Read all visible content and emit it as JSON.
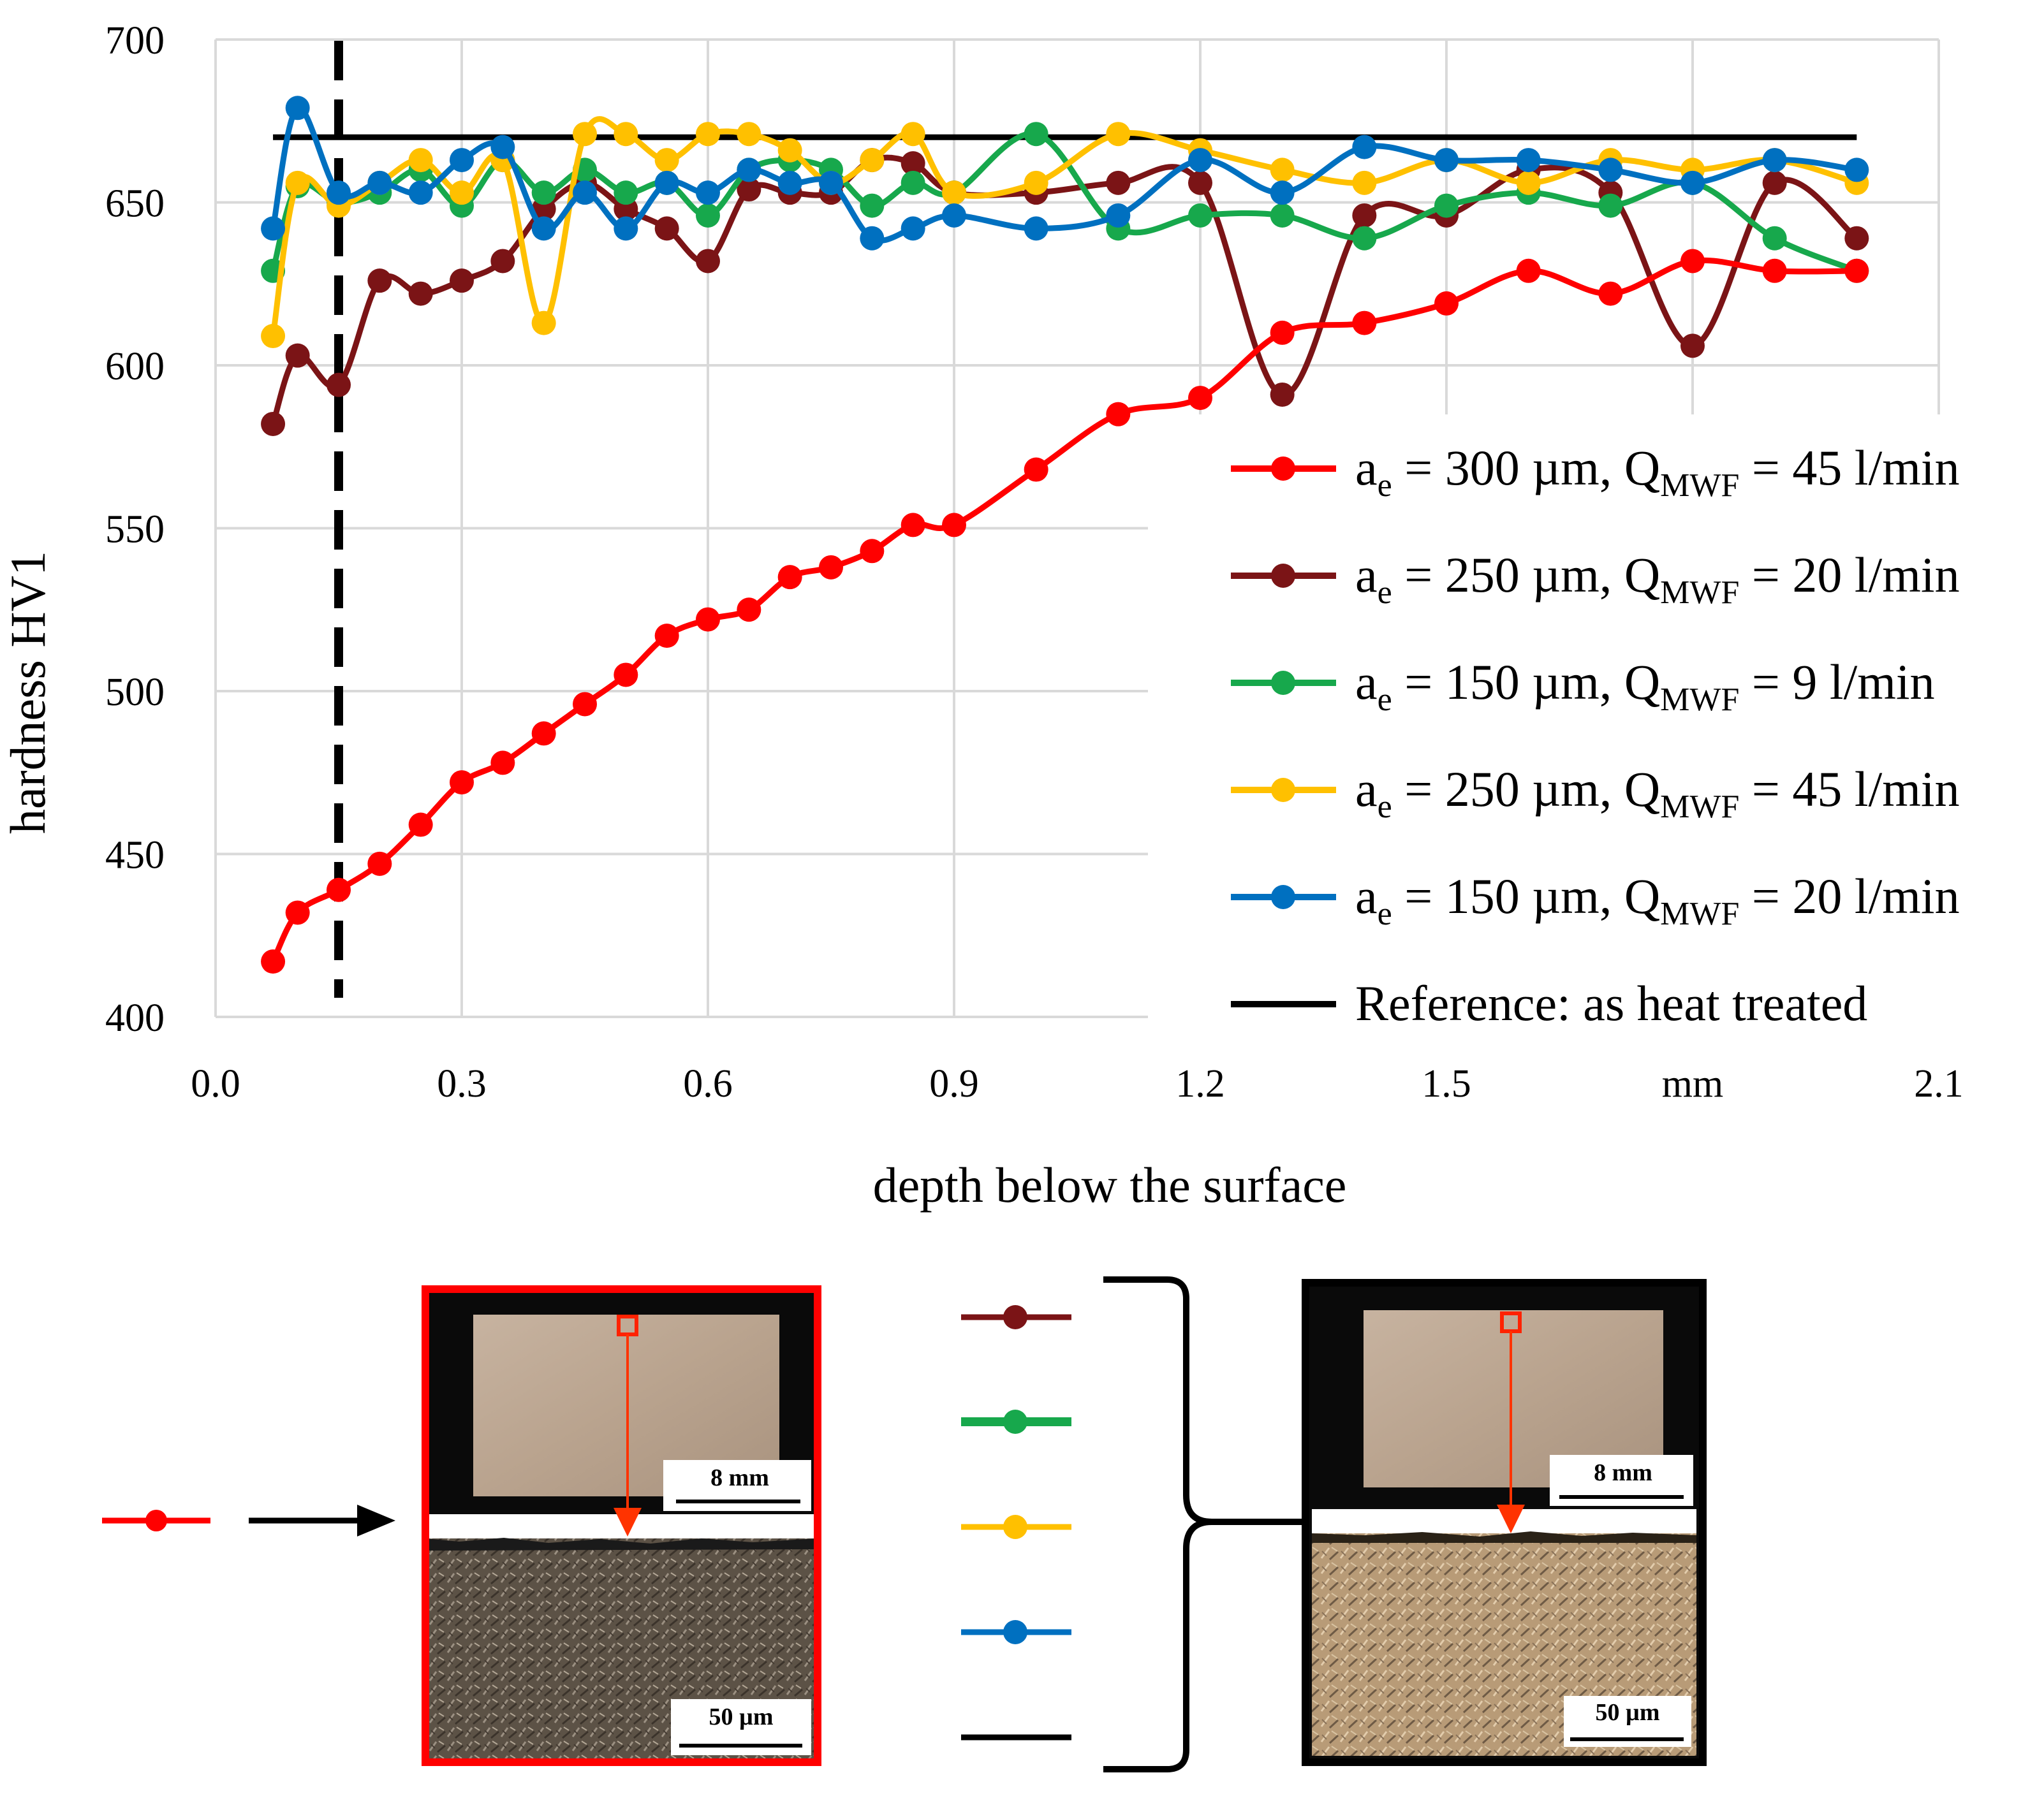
{
  "chart_data": {
    "type": "line",
    "xlabel": "depth below the surface",
    "ylabel": "hardness HV1",
    "xlim": [
      0.0,
      2.1
    ],
    "ylim": [
      400,
      700
    ],
    "x_ticks": [
      0.0,
      0.3,
      0.6,
      0.9,
      1.2,
      1.5,
      1.8,
      2.1
    ],
    "x_tick_labels": [
      "0.0",
      "0.3",
      "0.6",
      "0.9",
      "1.2",
      "1.5",
      "mm",
      "2.1"
    ],
    "y_ticks": [
      400,
      450,
      500,
      550,
      600,
      650,
      700
    ],
    "y_tick_labels": [
      "400",
      "450",
      "500",
      "550",
      "600",
      "650",
      "700"
    ],
    "grid": true,
    "legend_position": "right",
    "marker_line_x": 0.15,
    "series": [
      {
        "name": "ae = 300 µm, QMWF = 45 l/min",
        "label_parts": [
          "a",
          "e",
          " = 300 µm, Q",
          "MWF",
          " = 45 l/min"
        ],
        "color": "#ff0000",
        "x": [
          0.07,
          0.1,
          0.15,
          0.2,
          0.25,
          0.3,
          0.35,
          0.4,
          0.45,
          0.5,
          0.55,
          0.6,
          0.65,
          0.7,
          0.75,
          0.8,
          0.85,
          0.9,
          1.0,
          1.1,
          1.2,
          1.3,
          1.4,
          1.5,
          1.6,
          1.7,
          1.8,
          1.9,
          2.0
        ],
        "y": [
          417,
          432,
          439,
          447,
          459,
          472,
          478,
          487,
          496,
          505,
          517,
          522,
          525,
          535,
          538,
          543,
          551,
          551,
          568,
          585,
          590,
          610,
          613,
          619,
          629,
          622,
          632,
          629,
          629
        ]
      },
      {
        "name": "ae = 250 µm, QMWF = 20 l/min",
        "label_parts": [
          "a",
          "e",
          " = 250 µm, Q",
          "MWF",
          " = 20 l/min"
        ],
        "color": "#7b1416",
        "x": [
          0.07,
          0.1,
          0.15,
          0.2,
          0.25,
          0.3,
          0.35,
          0.4,
          0.45,
          0.5,
          0.55,
          0.6,
          0.65,
          0.7,
          0.75,
          0.8,
          0.85,
          0.9,
          1.0,
          1.1,
          1.2,
          1.3,
          1.4,
          1.5,
          1.6,
          1.7,
          1.8,
          1.9,
          2.0
        ],
        "y": [
          582,
          603,
          594,
          626,
          622,
          626,
          632,
          648,
          656,
          648,
          642,
          632,
          654,
          653,
          653,
          663,
          662,
          653,
          653,
          656,
          656,
          591,
          646,
          646,
          660,
          653,
          606,
          656,
          639
        ]
      },
      {
        "name": "ae = 150 µm, QMWF = 9 l/min",
        "label_parts": [
          "a",
          "e",
          " = 150 µm, Q",
          "MWF",
          " = 9 l/min"
        ],
        "color": "#17a84c",
        "x": [
          0.07,
          0.1,
          0.15,
          0.2,
          0.25,
          0.3,
          0.35,
          0.4,
          0.45,
          0.5,
          0.55,
          0.6,
          0.65,
          0.7,
          0.75,
          0.8,
          0.85,
          0.9,
          1.0,
          1.1,
          1.2,
          1.3,
          1.4,
          1.5,
          1.6,
          1.7,
          1.8,
          1.9,
          2.0
        ],
        "y": [
          629,
          655,
          650,
          653,
          660,
          649,
          663,
          653,
          660,
          653,
          656,
          646,
          660,
          663,
          660,
          649,
          656,
          653,
          671,
          642,
          646,
          646,
          639,
          649,
          653,
          649,
          656,
          639,
          629
        ]
      },
      {
        "name": "ae = 250 µm, QMWF = 45 l/min",
        "label_parts": [
          "a",
          "e",
          " = 250 µm, Q",
          "MWF",
          " = 45 l/min"
        ],
        "color": "#ffc000",
        "x": [
          0.07,
          0.1,
          0.15,
          0.2,
          0.25,
          0.3,
          0.35,
          0.4,
          0.45,
          0.5,
          0.55,
          0.6,
          0.65,
          0.7,
          0.75,
          0.8,
          0.85,
          0.9,
          1.0,
          1.1,
          1.2,
          1.3,
          1.4,
          1.5,
          1.6,
          1.7,
          1.8,
          1.9,
          2.0
        ],
        "y": [
          609,
          656,
          649,
          656,
          663,
          653,
          663,
          613,
          671,
          671,
          663,
          671,
          671,
          666,
          656,
          663,
          671,
          653,
          656,
          671,
          666,
          660,
          656,
          663,
          656,
          663,
          660,
          663,
          656
        ]
      },
      {
        "name": "ae = 150 µm, QMWF = 20 l/min",
        "label_parts": [
          "a",
          "e",
          " = 150 µm, Q",
          "MWF",
          " = 20 l/min"
        ],
        "color": "#0070c0",
        "x": [
          0.07,
          0.1,
          0.15,
          0.2,
          0.25,
          0.3,
          0.35,
          0.4,
          0.45,
          0.5,
          0.55,
          0.6,
          0.65,
          0.7,
          0.75,
          0.8,
          0.85,
          0.9,
          1.0,
          1.1,
          1.2,
          1.3,
          1.4,
          1.5,
          1.6,
          1.7,
          1.8,
          1.9,
          2.0
        ],
        "y": [
          642,
          679,
          653,
          656,
          653,
          663,
          667,
          642,
          653,
          642,
          656,
          653,
          660,
          656,
          656,
          639,
          642,
          646,
          642,
          646,
          663,
          653,
          667,
          663,
          663,
          660,
          656,
          663,
          660
        ]
      },
      {
        "name": "Reference: as heat treated",
        "label_parts": [
          "Reference: as heat treated"
        ],
        "color": "#000000",
        "x": [
          0.07,
          2.0
        ],
        "y": [
          670,
          670
        ],
        "no_markers": true
      }
    ]
  },
  "figure_panel": {
    "left_image": {
      "scale_top": "8 mm",
      "scale_bottom": "50 µm",
      "frame_color": "#ff0000"
    },
    "right_image": {
      "scale_top": "8 mm",
      "scale_bottom": "50 µm",
      "frame_color": "#000000"
    }
  }
}
